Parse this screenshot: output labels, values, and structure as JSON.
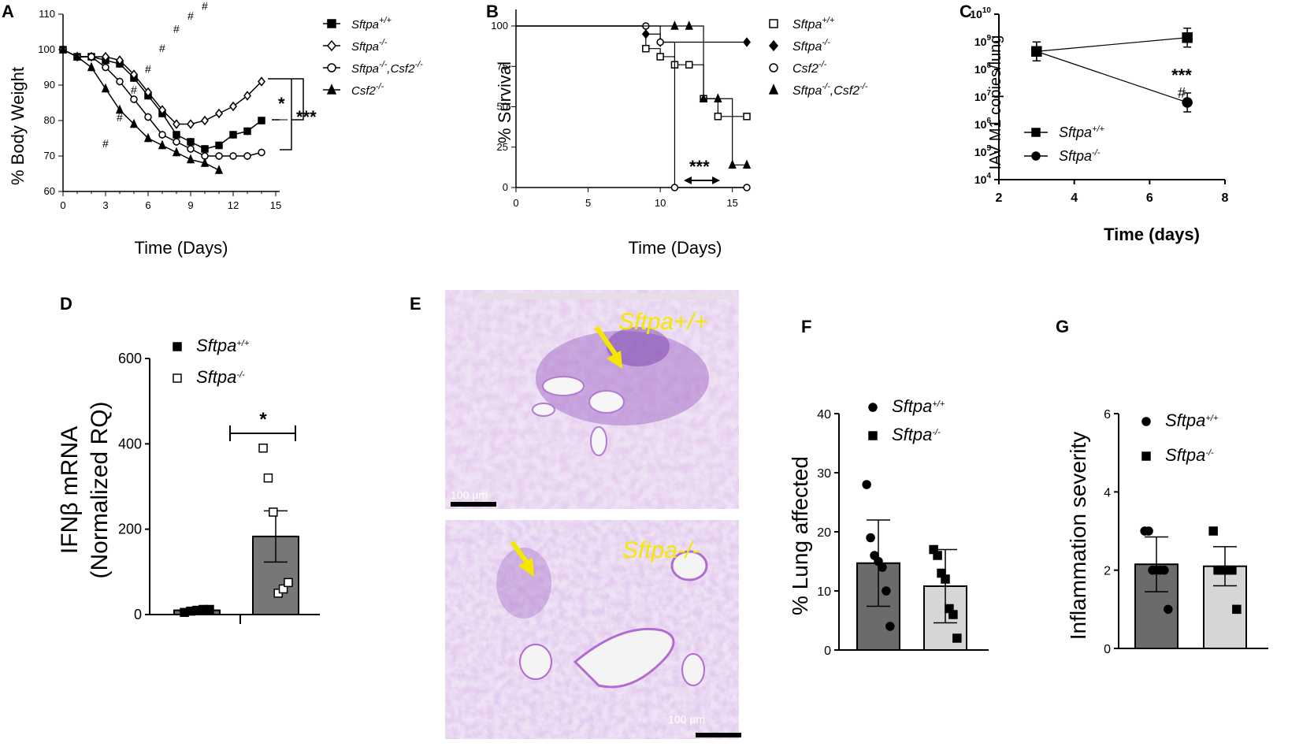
{
  "figure": {
    "panels": [
      "A",
      "B",
      "C",
      "D",
      "E",
      "F",
      "G"
    ]
  },
  "chart_data": [
    {
      "panel": "A",
      "type": "line",
      "xlabel": "Time (Days)",
      "ylabel": "% Body Weight",
      "xlim": [
        0,
        15
      ],
      "ylim": [
        60,
        110
      ],
      "xticks": [
        "0",
        "3",
        "6",
        "9",
        "12",
        "15"
      ],
      "yticks": [
        "60",
        "70",
        "80",
        "90",
        "100",
        "110"
      ],
      "series": [
        {
          "name": "Sftpa+/+",
          "marker": "square-filled",
          "x": [
            0,
            1,
            2,
            3,
            4,
            5,
            6,
            7,
            8,
            9,
            10,
            11,
            12,
            13,
            14
          ],
          "y": [
            100,
            98,
            98,
            97,
            96,
            92,
            87,
            82,
            76,
            74,
            72,
            73,
            76,
            77,
            80
          ]
        },
        {
          "name": "Sftpa-/-",
          "marker": "diamond-open",
          "x": [
            0,
            1,
            2,
            3,
            4,
            5,
            6,
            7,
            8,
            9,
            10,
            11,
            12,
            13,
            14
          ],
          "y": [
            100,
            98,
            98,
            98,
            97,
            93,
            88,
            83,
            79,
            79,
            80,
            82,
            84,
            87,
            91
          ]
        },
        {
          "name": "Sftpa-/-,Csf2-/-",
          "marker": "circle-open",
          "x": [
            0,
            1,
            2,
            3,
            4,
            5,
            6,
            7,
            8,
            9,
            10,
            11,
            12,
            13,
            14
          ],
          "y": [
            100,
            98,
            98,
            95,
            91,
            86,
            81,
            76,
            74,
            72,
            70,
            70,
            70,
            70,
            71
          ]
        },
        {
          "name": "Csf2-/-",
          "marker": "triangle-filled",
          "x": [
            0,
            1,
            2,
            3,
            4,
            5,
            6,
            7,
            8,
            9,
            10,
            11
          ],
          "y": [
            100,
            98,
            95,
            89,
            83,
            79,
            75,
            73,
            71,
            69,
            68,
            66
          ]
        }
      ],
      "annotations": {
        "hash": "#",
        "sig_star": "*",
        "sig_triple": "***"
      }
    },
    {
      "panel": "B",
      "type": "line",
      "xlabel": "Time (Days)",
      "ylabel": "% Survival",
      "xlim": [
        0,
        16
      ],
      "ylim": [
        0,
        100
      ],
      "xticks": [
        "0",
        "5",
        "10",
        "15"
      ],
      "yticks": [
        "0",
        "25",
        "50",
        "75",
        "100"
      ],
      "series": [
        {
          "name": "Sftpa+/+",
          "marker": "square-open",
          "steps": [
            [
              0,
              100
            ],
            [
              9,
              86
            ],
            [
              10,
              81
            ],
            [
              11,
              76
            ],
            [
              12,
              76
            ],
            [
              13,
              55
            ],
            [
              14,
              44
            ],
            [
              16,
              44
            ]
          ]
        },
        {
          "name": "Sftpa-/-",
          "marker": "diamond-filled",
          "steps": [
            [
              0,
              100
            ],
            [
              9,
              95
            ],
            [
              10,
              90
            ],
            [
              16,
              90
            ]
          ]
        },
        {
          "name": "Csf2-/-",
          "marker": "circle-open",
          "steps": [
            [
              0,
              100
            ],
            [
              9,
              100
            ],
            [
              10,
              90
            ],
            [
              11,
              0
            ],
            [
              16,
              0
            ]
          ]
        },
        {
          "name": "Sftpa-/-,Csf2-/-",
          "marker": "triangle-filled",
          "steps": [
            [
              0,
              100
            ],
            [
              11,
              100
            ],
            [
              12,
              100
            ],
            [
              13,
              55
            ],
            [
              14,
              55
            ],
            [
              15,
              14
            ],
            [
              16,
              14
            ]
          ]
        }
      ],
      "annotations": {
        "sig_triple": "***"
      }
    },
    {
      "panel": "C",
      "type": "line",
      "xlabel": "Time (days)",
      "ylabel": "IAV M1 copies/lung",
      "log_y": true,
      "xlim": [
        2,
        8
      ],
      "ylim_exp": [
        4,
        10
      ],
      "xticks": [
        "2",
        "4",
        "6",
        "8"
      ],
      "series": [
        {
          "name": "Sftpa+/+",
          "marker": "square-filled",
          "x": [
            3,
            7
          ],
          "y_exp": [
            8.65,
            9.15
          ]
        },
        {
          "name": "Sftpa-/-",
          "marker": "circle-filled",
          "x": [
            3,
            7
          ],
          "y_exp": [
            8.65,
            6.8
          ]
        }
      ],
      "annotations": {
        "sig_triple": "***",
        "hash": "#"
      }
    },
    {
      "panel": "D",
      "type": "bar",
      "ylabel_line1": "IFNβ mRNA",
      "ylabel_line2": "(Normalized RQ)",
      "ylim": [
        0,
        600
      ],
      "yticks": [
        "0",
        "200",
        "400",
        "600"
      ],
      "series": [
        {
          "name": "Sftpa+/+",
          "marker": "square-filled",
          "mean": 10,
          "err": 4,
          "points": [
            5,
            8,
            10,
            12,
            12
          ]
        },
        {
          "name": "Sftpa-/-",
          "marker": "square-open",
          "mean": 183,
          "err": 60,
          "points": [
            390,
            320,
            240,
            50,
            60,
            75
          ]
        }
      ],
      "annotations": {
        "sig_star": "*"
      }
    },
    {
      "panel": "E",
      "type": "image",
      "labels": [
        {
          "name": "Sftpa+/+",
          "scale": "100 µm"
        },
        {
          "name": "Sftpa-/-",
          "scale": "100 µm"
        }
      ]
    },
    {
      "panel": "F",
      "type": "bar",
      "ylabel": "% Lung affected",
      "ylim": [
        0,
        40
      ],
      "yticks": [
        "0",
        "10",
        "20",
        "30",
        "40"
      ],
      "series": [
        {
          "name": "Sftpa+/+",
          "marker": "circle-filled",
          "color": "#6b6b6b",
          "mean": 14.7,
          "err": 7.3,
          "points": [
            28,
            19,
            16,
            15,
            14,
            10,
            4
          ]
        },
        {
          "name": "Sftpa-/-",
          "marker": "square-filled",
          "color": "#d6d6d6",
          "mean": 10.8,
          "err": 6.2,
          "points": [
            17,
            16,
            13,
            12,
            7,
            6,
            2
          ]
        }
      ]
    },
    {
      "panel": "G",
      "type": "bar",
      "ylabel": "Inflammation severity",
      "ylim": [
        0,
        6
      ],
      "yticks": [
        "0",
        "2",
        "4",
        "6"
      ],
      "series": [
        {
          "name": "Sftpa+/+",
          "marker": "circle-filled",
          "color": "#6b6b6b",
          "mean": 2.15,
          "err": 0.7,
          "points": [
            3,
            3,
            2,
            2,
            2,
            2,
            1
          ]
        },
        {
          "name": "Sftpa-/-",
          "marker": "square-filled",
          "color": "#d6d6d6",
          "mean": 2.1,
          "err": 0.5,
          "points": [
            3,
            2,
            2,
            2,
            2,
            1
          ]
        }
      ]
    }
  ]
}
